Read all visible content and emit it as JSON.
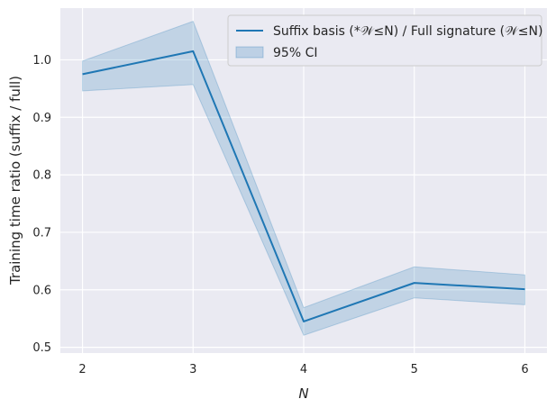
{
  "chart_data": {
    "type": "line",
    "xlabel": "N",
    "ylabel": "Training time ratio (suffix / full)",
    "x": [
      2,
      3,
      4,
      5,
      6
    ],
    "xlim": [
      1.8,
      6.2
    ],
    "ylim": [
      0.49,
      1.09
    ],
    "x_ticks": [
      2,
      3,
      4,
      5,
      6
    ],
    "y_ticks": [
      0.5,
      0.6,
      0.7,
      0.8,
      0.9,
      1.0
    ],
    "y_tick_labels": [
      "0.5",
      "0.6",
      "0.7",
      "0.8",
      "0.9",
      "1.0"
    ],
    "grid": true,
    "legend_position": "top-right",
    "series": [
      {
        "name": "Suffix basis (*𝒲≤N) / Full signature (𝒲≤N)",
        "values": [
          0.975,
          1.015,
          0.545,
          0.612,
          0.601
        ],
        "ci_lower": [
          0.946,
          0.957,
          0.521,
          0.586,
          0.574
        ],
        "ci_upper": [
          0.998,
          1.067,
          0.569,
          0.64,
          0.626
        ],
        "ci_label": "95% CI",
        "color": "#1f77b4",
        "ci_color": "#1f77b4"
      }
    ],
    "background_color": "#eaeaf2"
  }
}
